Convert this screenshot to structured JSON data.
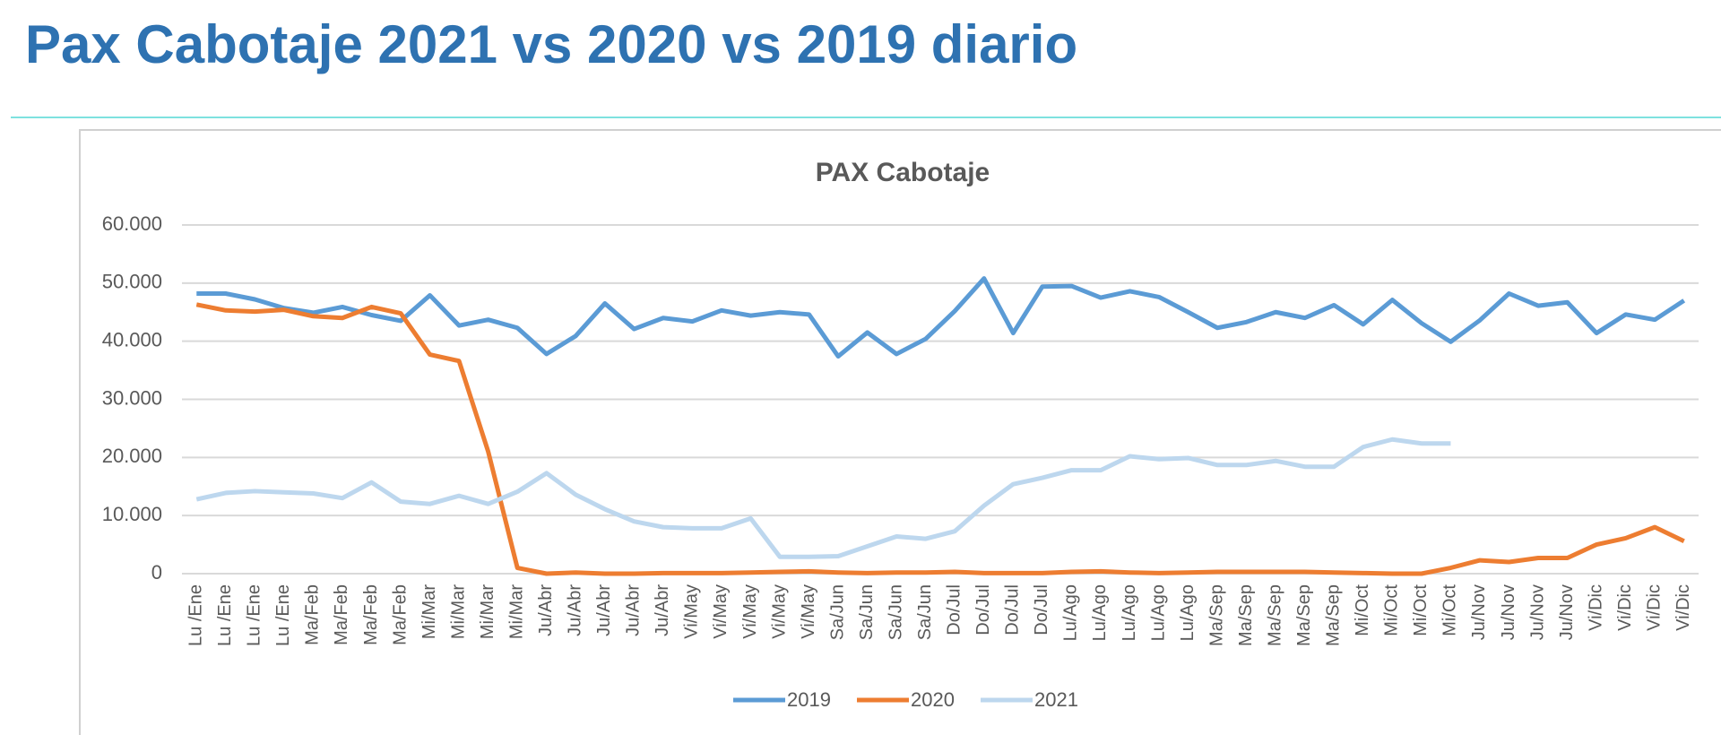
{
  "page_title": "Pax Cabotaje 2021 vs 2020 vs 2019 diario",
  "chart_data": {
    "type": "line",
    "title": "PAX Cabotaje",
    "categories": [
      "Lu /Ene",
      "Lu /Ene",
      "Lu /Ene",
      "Lu /Ene",
      "Ma/Feb",
      "Ma/Feb",
      "Ma/Feb",
      "Ma/Feb",
      "Mi/Mar",
      "Mi/Mar",
      "Mi/Mar",
      "Mi/Mar",
      "Ju/Abr",
      "Ju/Abr",
      "Ju/Abr",
      "Ju/Abr",
      "Ju/Abr",
      "Vi/May",
      "Vi/May",
      "Vi/May",
      "Vi/May",
      "Vi/May",
      "Sa/Jun",
      "Sa/Jun",
      "Sa/Jun",
      "Sa/Jun",
      "Do/Jul",
      "Do/Jul",
      "Do/Jul",
      "Do/Jul",
      "Lu/Ago",
      "Lu/Ago",
      "Lu/Ago",
      "Lu/Ago",
      "Lu/Ago",
      "Ma/Sep",
      "Ma/Sep",
      "Ma/Sep",
      "Ma/Sep",
      "Ma/Sep",
      "Mi/Oct",
      "Mi/Oct",
      "Mi/Oct",
      "Mi/Oct",
      "Ju/Nov",
      "Ju/Nov",
      "Ju/Nov",
      "Ju/Nov",
      "Vi/Dic",
      "Vi/Dic",
      "Vi/Dic",
      "Vi/Dic"
    ],
    "series": [
      {
        "name": "2019",
        "color": "#5b9bd5",
        "values": [
          48200,
          48200,
          47200,
          45700,
          44900,
          45900,
          44500,
          43500,
          47900,
          42700,
          43700,
          42300,
          37800,
          40900,
          46500,
          42100,
          44000,
          43400,
          45300,
          44400,
          45000,
          44600,
          37400,
          41500,
          37800,
          40400,
          45200,
          50800,
          41400,
          49400,
          49500,
          47500,
          48600,
          47600,
          45000,
          42300,
          43300,
          45000,
          44000,
          46200,
          42900,
          47100,
          43100,
          39900,
          43600,
          48200,
          46100,
          46700,
          41400,
          44600,
          43700,
          47000
        ]
      },
      {
        "name": "2020",
        "color": "#ed7d31",
        "values": [
          46300,
          45300,
          45100,
          45400,
          44300,
          44000,
          45900,
          44800,
          37700,
          36600,
          21000,
          1000,
          0,
          200,
          0,
          0,
          100,
          100,
          100,
          200,
          300,
          400,
          200,
          100,
          200,
          200,
          300,
          100,
          100,
          100,
          300,
          400,
          200,
          100,
          200,
          300,
          300,
          300,
          300,
          200,
          100,
          0,
          0,
          1000,
          2300,
          2000,
          2700,
          2700,
          5000,
          6100,
          8000,
          5600
        ]
      },
      {
        "name": "2021",
        "color": "#bdd7ee",
        "values": [
          12800,
          13900,
          14200,
          14000,
          13800,
          13000,
          15700,
          12400,
          12000,
          13400,
          12000,
          14100,
          17300,
          13600,
          11100,
          9000,
          8000,
          7800,
          7800,
          9500,
          2900,
          2900,
          3000,
          4700,
          6400,
          6000,
          7300,
          11700,
          15400,
          16500,
          17800,
          17800,
          20200,
          19700,
          19900,
          18700,
          18700,
          19400,
          18400,
          18400,
          21800,
          23100,
          22400,
          22400,
          null,
          null,
          null,
          null,
          null,
          null,
          null,
          null
        ]
      }
    ],
    "ylim": [
      0,
      60000
    ],
    "yticks": [
      0,
      {
        "value": 10000,
        "label": "10.000"
      },
      {
        "value": 20000,
        "label": "20.000"
      },
      {
        "value": 30000,
        "label": "30.000"
      },
      {
        "value": 40000,
        "label": "40.000"
      },
      {
        "value": 50000,
        "label": "50.000"
      },
      {
        "value": 60000,
        "label": "60.000"
      }
    ],
    "grid": true,
    "legend": "bottom"
  }
}
